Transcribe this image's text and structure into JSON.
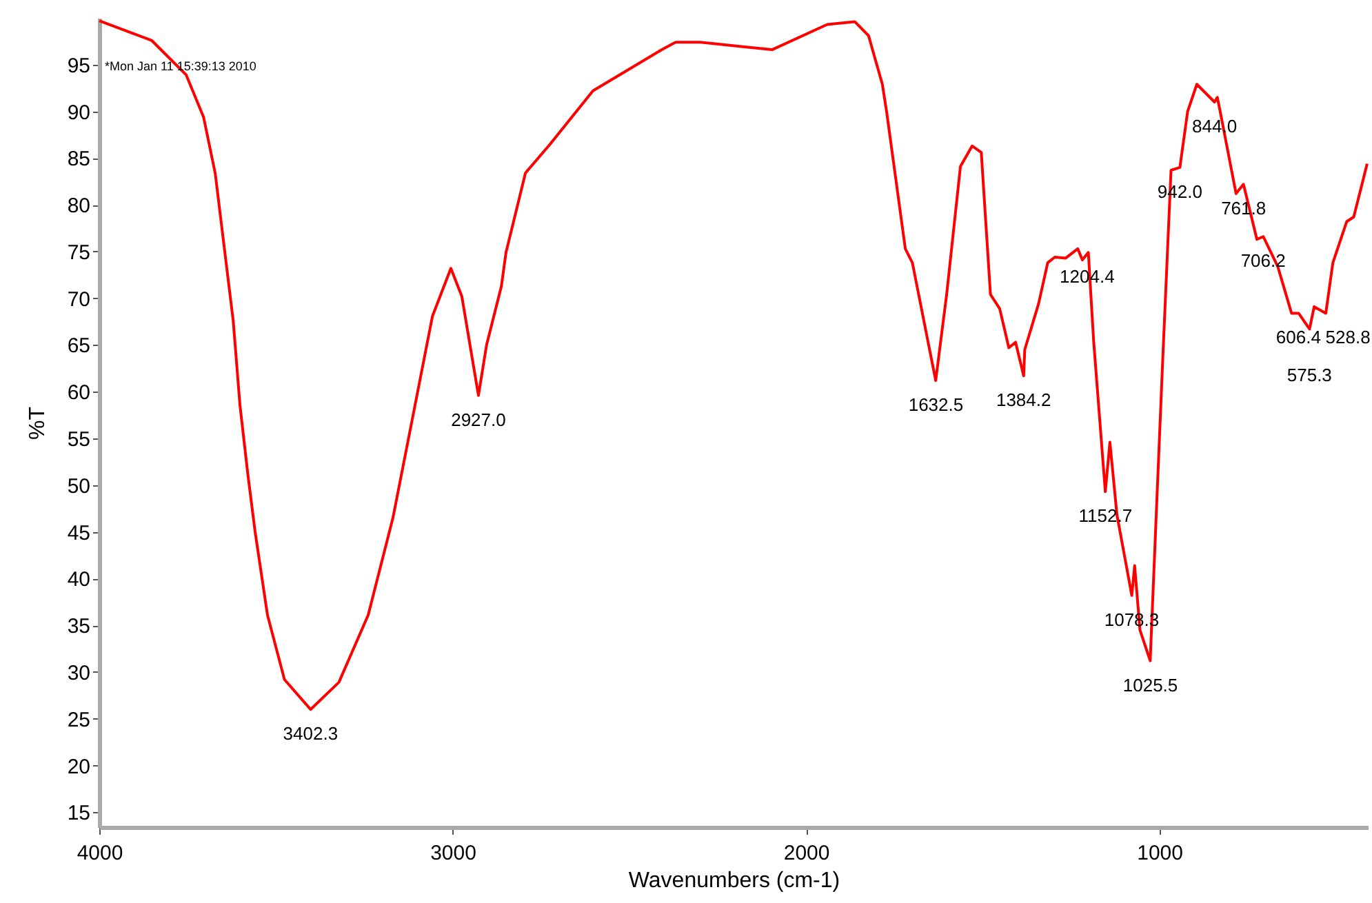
{
  "chart_data": {
    "type": "line",
    "xlabel": "Wavenumbers (cm-1)",
    "ylabel": "%T",
    "xlim": [
      4000,
      410
    ],
    "ylim": [
      13.4,
      100
    ],
    "xticks": [
      4000,
      3000,
      2000,
      1000
    ],
    "yticks": [
      15,
      20,
      25,
      30,
      35,
      40,
      45,
      50,
      55,
      60,
      65,
      70,
      75,
      80,
      85,
      90,
      95
    ],
    "grid": false,
    "marker": "none",
    "line_style": "solid",
    "series": [
      {
        "color": "#ff0000",
        "x": [
          4000,
          3852,
          3754,
          3705,
          3672,
          3643,
          3621,
          3602,
          3580,
          3559,
          3524,
          3476,
          3402,
          3322,
          3239,
          3169,
          3114,
          3057,
          3005,
          2974,
          2927,
          2904,
          2862,
          2849,
          2794,
          2724,
          2603,
          2408,
          2369,
          2300,
          2174,
          2096,
          1940,
          1862,
          1823,
          1784,
          1772,
          1719,
          1699,
          1633,
          1602,
          1563,
          1530,
          1504,
          1478,
          1452,
          1426,
          1407,
          1384,
          1381,
          1342,
          1316,
          1296,
          1265,
          1231,
          1218,
          1201,
          1186,
          1153,
          1140,
          1120,
          1078,
          1070,
          1055,
          1026,
          1010,
          991,
          967,
          942,
          920,
          894,
          844,
          836,
          828,
          783,
          762,
          724,
          706,
          665,
          626,
          606,
          575,
          562,
          529,
          509,
          470,
          450,
          412
        ],
        "values": [
          99.7,
          97.6,
          93.9,
          89.4,
          83.4,
          74.4,
          67.6,
          58.6,
          51.3,
          45.0,
          36.1,
          29.2,
          26.0,
          28.9,
          36.1,
          46.5,
          57.1,
          68.1,
          73.2,
          70.2,
          59.6,
          65.0,
          71.3,
          74.9,
          83.4,
          86.5,
          92.2,
          96.6,
          97.4,
          97.4,
          96.9,
          96.6,
          99.3,
          99.6,
          98.1,
          92.9,
          90.0,
          75.3,
          73.8,
          61.2,
          70.4,
          84.1,
          86.3,
          85.6,
          70.4,
          68.9,
          64.7,
          65.3,
          61.7,
          64.5,
          69.4,
          73.8,
          74.4,
          74.3,
          75.3,
          74.1,
          74.9,
          65.4,
          49.3,
          54.6,
          46.8,
          38.2,
          41.4,
          34.5,
          31.2,
          45.8,
          63.0,
          83.7,
          84.0,
          90.0,
          92.9,
          91.0,
          91.5,
          90.0,
          81.2,
          82.2,
          76.3,
          76.6,
          73.4,
          68.4,
          68.4,
          66.7,
          69.1,
          68.4,
          73.8,
          78.2,
          78.7,
          84.4
        ]
      }
    ],
    "annotations": [
      "*Mon Jan 11 15:39:13 2010",
      {
        "text": "3402.3",
        "x": 3402.3,
        "y": 26.0
      },
      {
        "text": "2927.0",
        "x": 2927.0,
        "y": 59.6
      },
      {
        "text": "1632.5",
        "x": 1632.5,
        "y": 61.2
      },
      {
        "text": "1384.2",
        "x": 1384.2,
        "y": 61.7
      },
      {
        "text": "1204.4",
        "x": 1204.4,
        "y": 74.9
      },
      {
        "text": "1152.7",
        "x": 1152.7,
        "y": 49.3
      },
      {
        "text": "1078.3",
        "x": 1078.3,
        "y": 38.2
      },
      {
        "text": "1025.5",
        "x": 1025.5,
        "y": 31.2
      },
      {
        "text": "942.0",
        "x": 942.0,
        "y": 84.0
      },
      {
        "text": "844.0",
        "x": 844.0,
        "y": 91.0
      },
      {
        "text": "761.8",
        "x": 761.8,
        "y": 82.2
      },
      {
        "text": "706.2",
        "x": 706.2,
        "y": 76.6
      },
      {
        "text": "606.4",
        "x": 606.4,
        "y": 68.4
      },
      {
        "text": "575.3",
        "x": 575.3,
        "y": 66.7
      },
      {
        "text": "528.8",
        "x": 528.8,
        "y": 68.4
      }
    ]
  }
}
